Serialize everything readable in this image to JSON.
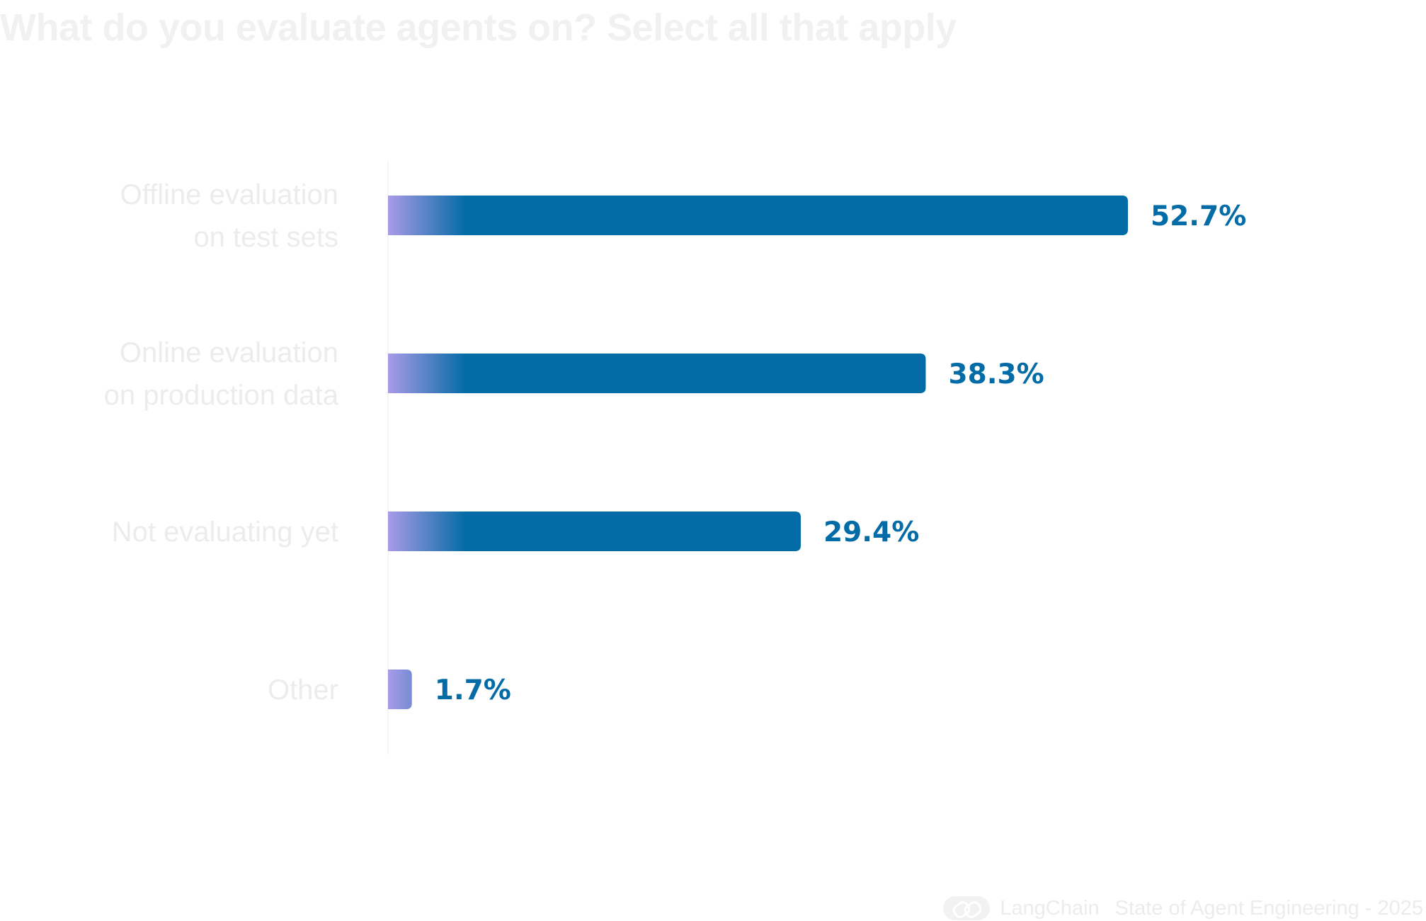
{
  "title": "What do you evaluate agents on? Select all that apply",
  "footer": {
    "brand": "LangChain",
    "report": "State of Agent Engineering - 2025"
  },
  "colors": {
    "bar": "#036ba5",
    "bar_gradient_start": "#a99be8",
    "value_text": "#036ba5",
    "muted_text": "#ececec"
  },
  "chart_data": {
    "type": "bar",
    "orientation": "horizontal",
    "categories": [
      [
        "Offline evaluation",
        "on test sets"
      ],
      [
        "Online evaluation",
        "on production data"
      ],
      [
        "Not evaluating yet"
      ],
      [
        "Other"
      ]
    ],
    "values": [
      52.7,
      38.3,
      29.4,
      1.7
    ],
    "value_labels": [
      "52.7%",
      "38.3%",
      "29.4%",
      "1.7%"
    ],
    "unit": "%",
    "xlim": [
      0,
      60
    ],
    "grid": false,
    "legend": "none"
  }
}
